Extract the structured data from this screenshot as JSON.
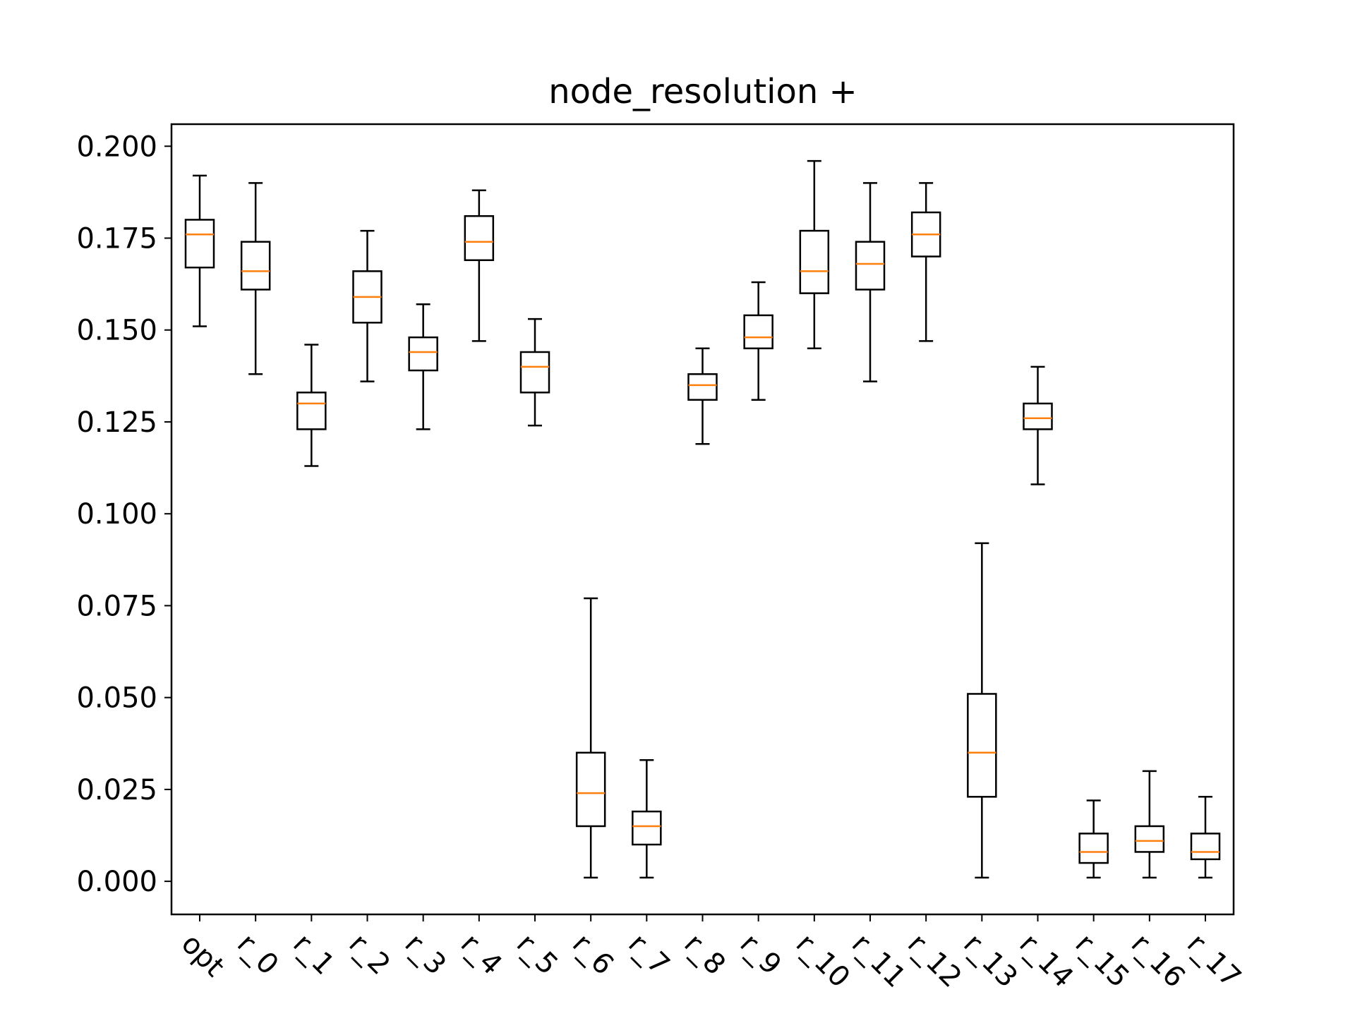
{
  "chart_data": {
    "type": "box",
    "title": "node_resolution +",
    "xlabel": "",
    "ylabel": "",
    "ylim": [
      -0.009,
      0.206
    ],
    "yticks": [
      "0.000",
      "0.025",
      "0.050",
      "0.075",
      "0.100",
      "0.125",
      "0.150",
      "0.175",
      "0.200"
    ],
    "ytick_values": [
      0.0,
      0.025,
      0.05,
      0.075,
      0.1,
      0.125,
      0.15,
      0.175,
      0.2
    ],
    "categories": [
      "opt",
      "r_0",
      "r_1",
      "r_2",
      "r_3",
      "r_4",
      "r_5",
      "r_6",
      "r_7",
      "r_8",
      "r_9",
      "r_10",
      "r_11",
      "r_12",
      "r_13",
      "r_14",
      "r_15",
      "r_16",
      "r_17"
    ],
    "boxes": [
      {
        "label": "opt",
        "whisker_low": 0.151,
        "q1": 0.167,
        "median": 0.176,
        "q3": 0.18,
        "whisker_high": 0.192
      },
      {
        "label": "r_0",
        "whisker_low": 0.138,
        "q1": 0.161,
        "median": 0.166,
        "q3": 0.174,
        "whisker_high": 0.19
      },
      {
        "label": "r_1",
        "whisker_low": 0.113,
        "q1": 0.123,
        "median": 0.13,
        "q3": 0.133,
        "whisker_high": 0.146
      },
      {
        "label": "r_2",
        "whisker_low": 0.136,
        "q1": 0.152,
        "median": 0.159,
        "q3": 0.166,
        "whisker_high": 0.177
      },
      {
        "label": "r_3",
        "whisker_low": 0.123,
        "q1": 0.139,
        "median": 0.144,
        "q3": 0.148,
        "whisker_high": 0.157
      },
      {
        "label": "r_4",
        "whisker_low": 0.147,
        "q1": 0.169,
        "median": 0.174,
        "q3": 0.181,
        "whisker_high": 0.188
      },
      {
        "label": "r_5",
        "whisker_low": 0.124,
        "q1": 0.133,
        "median": 0.14,
        "q3": 0.144,
        "whisker_high": 0.153
      },
      {
        "label": "r_6",
        "whisker_low": 0.001,
        "q1": 0.015,
        "median": 0.024,
        "q3": 0.035,
        "whisker_high": 0.077
      },
      {
        "label": "r_7",
        "whisker_low": 0.001,
        "q1": 0.01,
        "median": 0.015,
        "q3": 0.019,
        "whisker_high": 0.033
      },
      {
        "label": "r_8",
        "whisker_low": 0.119,
        "q1": 0.131,
        "median": 0.135,
        "q3": 0.138,
        "whisker_high": 0.145
      },
      {
        "label": "r_9",
        "whisker_low": 0.131,
        "q1": 0.145,
        "median": 0.148,
        "q3": 0.154,
        "whisker_high": 0.163
      },
      {
        "label": "r_10",
        "whisker_low": 0.145,
        "q1": 0.16,
        "median": 0.166,
        "q3": 0.177,
        "whisker_high": 0.196
      },
      {
        "label": "r_11",
        "whisker_low": 0.136,
        "q1": 0.161,
        "median": 0.168,
        "q3": 0.174,
        "whisker_high": 0.19
      },
      {
        "label": "r_12",
        "whisker_low": 0.147,
        "q1": 0.17,
        "median": 0.176,
        "q3": 0.182,
        "whisker_high": 0.19
      },
      {
        "label": "r_13",
        "whisker_low": 0.001,
        "q1": 0.023,
        "median": 0.035,
        "q3": 0.051,
        "whisker_high": 0.092
      },
      {
        "label": "r_14",
        "whisker_low": 0.108,
        "q1": 0.123,
        "median": 0.126,
        "q3": 0.13,
        "whisker_high": 0.14
      },
      {
        "label": "r_15",
        "whisker_low": 0.001,
        "q1": 0.005,
        "median": 0.008,
        "q3": 0.013,
        "whisker_high": 0.022
      },
      {
        "label": "r_16",
        "whisker_low": 0.001,
        "q1": 0.008,
        "median": 0.011,
        "q3": 0.015,
        "whisker_high": 0.03
      },
      {
        "label": "r_17",
        "whisker_low": 0.001,
        "q1": 0.006,
        "median": 0.008,
        "q3": 0.013,
        "whisker_high": 0.023
      }
    ],
    "grid": false,
    "legend": "none",
    "colors": {
      "box": "#000000",
      "median": "#ff7f0e",
      "background": "#ffffff"
    }
  }
}
